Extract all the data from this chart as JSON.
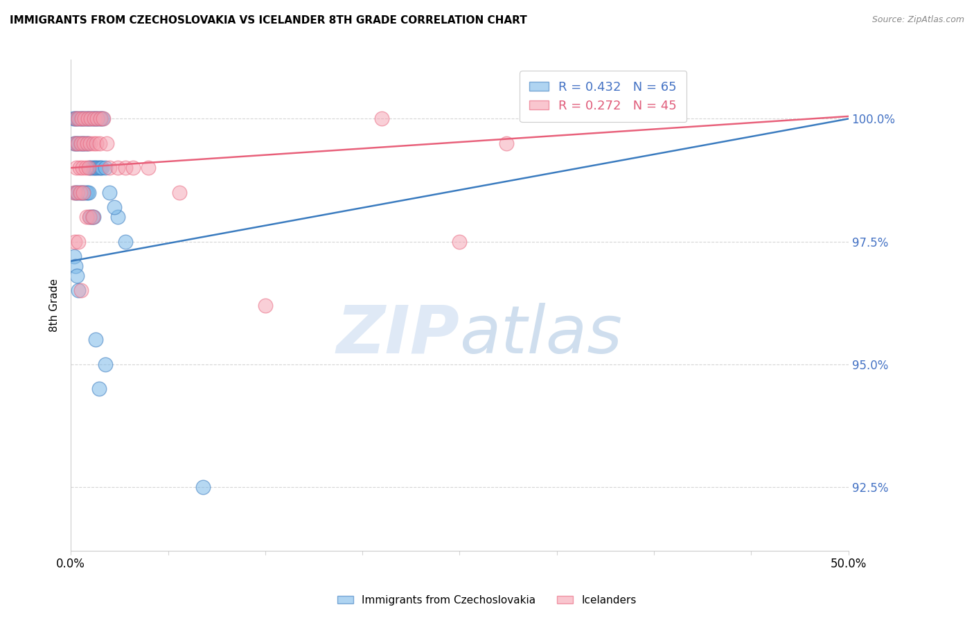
{
  "title": "IMMIGRANTS FROM CZECHOSLOVAKIA VS ICELANDER 8TH GRADE CORRELATION CHART",
  "source": "Source: ZipAtlas.com",
  "ylabel": "8th Grade",
  "yticks": [
    92.5,
    95.0,
    97.5,
    100.0
  ],
  "ytick_labels": [
    "92.5%",
    "95.0%",
    "97.5%",
    "100.0%"
  ],
  "ymin": 91.2,
  "ymax": 101.2,
  "xmin": 0.0,
  "xmax": 50.0,
  "blue_R": 0.432,
  "blue_N": 65,
  "pink_R": 0.272,
  "pink_N": 45,
  "blue_color": "#7ab8e8",
  "pink_color": "#f5a0b0",
  "blue_line_color": "#3a7bbf",
  "pink_line_color": "#e8607a",
  "legend_blue_label": "Immigrants from Czechoslovakia",
  "legend_pink_label": "Icelanders",
  "blue_line_x0": 0.0,
  "blue_line_y0": 97.1,
  "blue_line_x1": 50.0,
  "blue_line_y1": 100.0,
  "pink_line_x0": 0.0,
  "pink_line_y0": 99.0,
  "pink_line_x1": 50.0,
  "pink_line_y1": 100.05,
  "blue_dots_x": [
    0.15,
    0.25,
    0.35,
    0.45,
    0.55,
    0.65,
    0.75,
    0.85,
    0.95,
    1.05,
    1.15,
    1.25,
    1.35,
    1.45,
    1.55,
    1.65,
    1.75,
    1.85,
    1.95,
    2.05,
    0.2,
    0.3,
    0.4,
    0.5,
    0.6,
    0.7,
    0.8,
    0.9,
    1.0,
    1.1,
    1.2,
    1.3,
    1.4,
    1.5,
    1.6,
    1.7,
    1.8,
    1.9,
    2.0,
    2.2,
    0.25,
    0.35,
    0.45,
    0.55,
    0.65,
    0.75,
    0.85,
    0.95,
    1.05,
    1.15,
    1.25,
    1.35,
    1.45,
    2.5,
    3.0,
    3.5,
    2.8,
    0.2,
    0.3,
    0.4,
    0.5,
    1.6,
    1.8,
    2.2,
    8.5
  ],
  "blue_dots_y": [
    100.0,
    100.0,
    100.0,
    100.0,
    100.0,
    100.0,
    100.0,
    100.0,
    100.0,
    100.0,
    100.0,
    100.0,
    100.0,
    100.0,
    100.0,
    100.0,
    100.0,
    100.0,
    100.0,
    100.0,
    99.5,
    99.5,
    99.5,
    99.5,
    99.5,
    99.5,
    99.5,
    99.5,
    99.5,
    99.5,
    99.0,
    99.0,
    99.0,
    99.0,
    99.0,
    99.0,
    99.0,
    99.0,
    99.0,
    99.0,
    98.5,
    98.5,
    98.5,
    98.5,
    98.5,
    98.5,
    98.5,
    98.5,
    98.5,
    98.5,
    98.0,
    98.0,
    98.0,
    98.5,
    98.0,
    97.5,
    98.2,
    97.2,
    97.0,
    96.8,
    96.5,
    95.5,
    94.5,
    95.0,
    92.5
  ],
  "pink_dots_x": [
    0.3,
    0.5,
    0.7,
    0.9,
    1.1,
    1.3,
    1.5,
    1.7,
    1.9,
    2.1,
    0.25,
    0.45,
    0.65,
    0.85,
    1.05,
    1.25,
    1.45,
    1.65,
    1.85,
    2.3,
    0.35,
    0.55,
    0.75,
    0.95,
    1.15,
    2.5,
    3.0,
    3.5,
    4.0,
    5.0,
    0.2,
    0.4,
    0.6,
    0.8,
    1.0,
    1.2,
    1.4,
    7.0,
    12.5,
    20.0,
    0.28,
    0.48,
    0.68,
    25.0,
    28.0
  ],
  "pink_dots_y": [
    100.0,
    100.0,
    100.0,
    100.0,
    100.0,
    100.0,
    100.0,
    100.0,
    100.0,
    100.0,
    99.5,
    99.5,
    99.5,
    99.5,
    99.5,
    99.5,
    99.5,
    99.5,
    99.5,
    99.5,
    99.0,
    99.0,
    99.0,
    99.0,
    99.0,
    99.0,
    99.0,
    99.0,
    99.0,
    99.0,
    98.5,
    98.5,
    98.5,
    98.5,
    98.0,
    98.0,
    98.0,
    98.5,
    96.2,
    100.0,
    97.5,
    97.5,
    96.5,
    97.5,
    99.5
  ]
}
